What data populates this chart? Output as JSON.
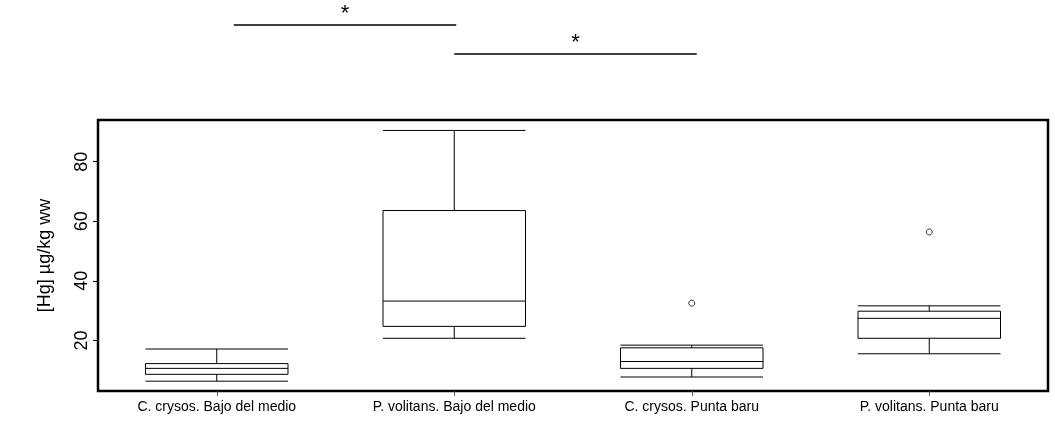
{
  "chart_data": {
    "type": "box",
    "ylabel": "[Hg] µg/kg ww",
    "categories": [
      "C. crysos. Bajo del medio",
      "P. volitans. Bajo del medio",
      "C. crysos. Punta baru",
      "P. volitans. Punta baru"
    ],
    "color": "#000000",
    "boxes": [
      {
        "low": 6.3,
        "q1": 8.6,
        "median": 10.6,
        "q3": 12.2,
        "high": 17.1
      },
      {
        "low": 20.7,
        "q1": 24.7,
        "median": 33.2,
        "q3": 63.6,
        "high": 90.5
      },
      {
        "low": 7.7,
        "q1": 10.6,
        "median": 12.9,
        "q3": 17.5,
        "high": 18.4,
        "outliers": [
          32.5
        ]
      },
      {
        "low": 15.5,
        "q1": 20.7,
        "median": 27.4,
        "q3": 29.8,
        "high": 31.6,
        "outliers": [
          56.4
        ]
      }
    ],
    "ylim": [
      3,
      94
    ],
    "yticks": [
      20,
      40,
      60,
      80
    ],
    "annotations": [
      "*",
      "*"
    ]
  }
}
